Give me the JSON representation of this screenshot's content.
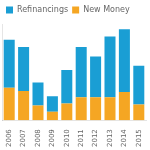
{
  "chart_data": {
    "type": "bar",
    "categories": [
      "2006",
      "2007",
      "2008",
      "2009",
      "2010",
      "2011",
      "2012",
      "2013",
      "2014",
      "2015"
    ],
    "series": [
      {
        "name": "New Money",
        "color": "#f5a623",
        "values": [
          155,
          140,
          70,
          40,
          80,
          110,
          110,
          110,
          135,
          75
        ]
      },
      {
        "name": "Refinancings",
        "color": "#1a9ed4",
        "values": [
          230,
          210,
          110,
          75,
          160,
          240,
          195,
          290,
          300,
          185
        ]
      }
    ],
    "stacked": true,
    "ylim": [
      0,
      460
    ],
    "grid": false,
    "legend": "top-left",
    "tick_labels": "x"
  }
}
